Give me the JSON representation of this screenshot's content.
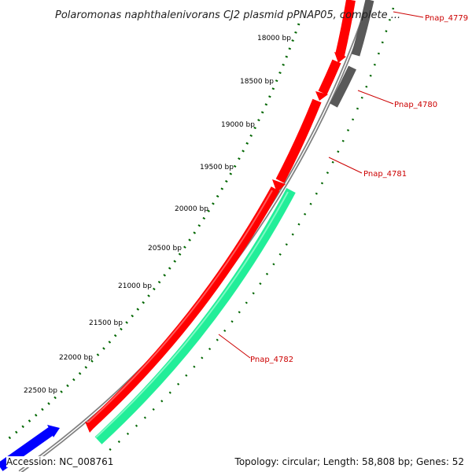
{
  "title": "Polaromonas naphthalenivorans CJ2 plasmid pPNAP05, complete ...",
  "colors": {
    "backbone": "#808080",
    "gene_red": "#ff0000",
    "gene_gray": "#595959",
    "gene_teal": "#22ee99",
    "gene_blue": "#0000ff",
    "tick": "#006600",
    "label": "#cc0000"
  },
  "ticks": [
    {
      "bp": 18000,
      "label": "18000 bp"
    },
    {
      "bp": 18500,
      "label": "18500 bp"
    },
    {
      "bp": 19000,
      "label": "19000 bp"
    },
    {
      "bp": 19500,
      "label": "19500 bp"
    },
    {
      "bp": 20000,
      "label": "20000 bp"
    },
    {
      "bp": 20500,
      "label": "20500 bp"
    },
    {
      "bp": 21000,
      "label": "21000 bp"
    },
    {
      "bp": 21500,
      "label": "21500 bp"
    },
    {
      "bp": 22000,
      "label": "22000 bp"
    },
    {
      "bp": 22500,
      "label": "22500 bp"
    }
  ],
  "genes": [
    {
      "name": "Pnap_4779",
      "label": "Pnap_4779"
    },
    {
      "name": "Pnap_4780",
      "label": "Pnap_4780"
    },
    {
      "name": "Pnap_4781",
      "label": "Pnap_4781"
    },
    {
      "name": "Pnap_4782",
      "label": "Pnap_4782"
    }
  ],
  "footer": {
    "accession": "Accession: NC_008761",
    "summary": "Topology: circular; Length: 58,808 bp; Genes: 52"
  }
}
